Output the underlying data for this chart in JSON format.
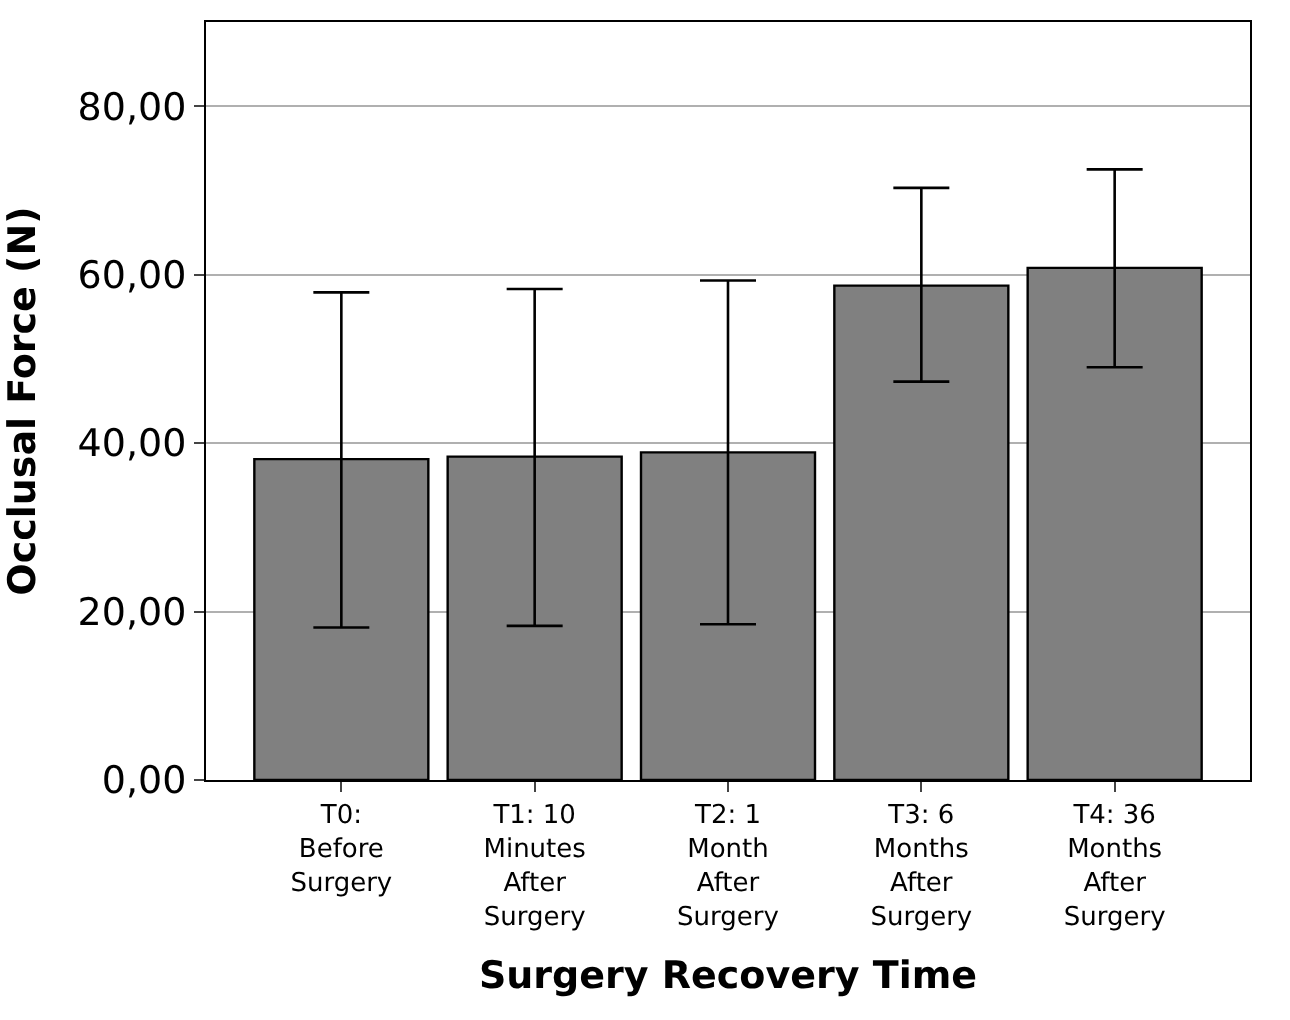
{
  "chart_data": {
    "type": "bar",
    "xlabel": "Surgery Recovery Time",
    "ylabel": "Occlusal Force (N)",
    "categories": [
      "T0:\nBefore\nSurgery",
      "T1: 10\nMinutes\nAfter\nSurgery",
      "T2: 1\nMonth\nAfter\nSurgery",
      "T3: 6\nMonths\nAfter\nSurgery",
      "T4: 36\nMonths\nAfter\nSurgery"
    ],
    "values": [
      38.1,
      38.4,
      38.9,
      58.7,
      60.8
    ],
    "errors": [
      [
        18.1,
        57.9
      ],
      [
        18.3,
        58.3
      ],
      [
        18.5,
        59.3
      ],
      [
        47.3,
        70.3
      ],
      [
        49.0,
        72.5
      ]
    ],
    "color": "#808080",
    "ylim": [
      0,
      90
    ],
    "yticks": [
      {
        "value": 0,
        "label": "0,00"
      },
      {
        "value": 20,
        "label": "20,00"
      },
      {
        "value": 40,
        "label": "40,00"
      },
      {
        "value": 60,
        "label": "60,00"
      },
      {
        "value": 80,
        "label": "80,00"
      }
    ],
    "grid": "y",
    "legend": false
  }
}
